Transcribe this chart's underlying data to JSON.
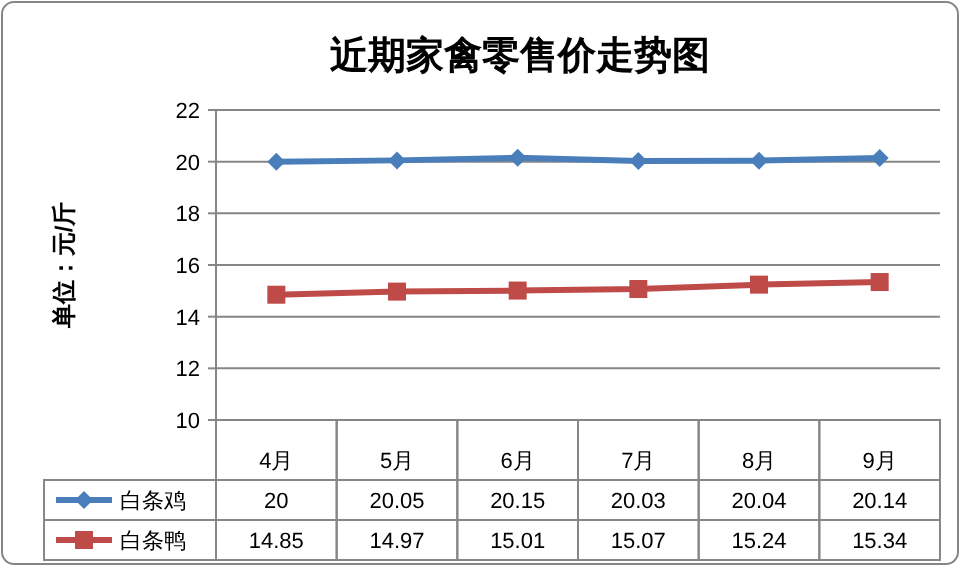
{
  "chart_data": {
    "type": "line",
    "title": "近期家禽零售价走势图",
    "ylabel": "单位：元/斤",
    "categories": [
      "4月",
      "5月",
      "6月",
      "7月",
      "8月",
      "9月"
    ],
    "series": [
      {
        "name": "白条鸡",
        "color": "#4a7ebb",
        "marker": "diamond",
        "values": [
          20,
          20.05,
          20.15,
          20.03,
          20.04,
          20.14
        ]
      },
      {
        "name": "白条鸭",
        "color": "#be4b48",
        "marker": "square",
        "values": [
          14.85,
          14.97,
          15.01,
          15.07,
          15.24,
          15.34
        ]
      }
    ],
    "ylim": [
      10,
      22
    ],
    "yticks": [
      10,
      12,
      14,
      16,
      18,
      20,
      22
    ],
    "grid": "y",
    "data_labels": true,
    "legend": "bottom"
  }
}
